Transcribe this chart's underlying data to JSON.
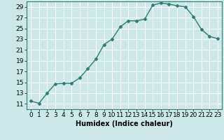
{
  "x": [
    0,
    1,
    2,
    3,
    4,
    5,
    6,
    7,
    8,
    9,
    10,
    11,
    12,
    13,
    14,
    15,
    16,
    17,
    18,
    19,
    20,
    21,
    22,
    23
  ],
  "y": [
    11.5,
    11.1,
    13.0,
    14.7,
    14.8,
    14.8,
    15.8,
    17.5,
    19.3,
    22.0,
    23.0,
    25.3,
    26.4,
    26.4,
    26.7,
    29.3,
    29.7,
    29.5,
    29.2,
    29.0,
    27.2,
    24.8,
    23.5,
    23.1
  ],
  "line_color": "#2e7d6e",
  "marker": "D",
  "marker_size": 2.5,
  "bg_color": "#cce8e8",
  "grid_color": "#ffffff",
  "xlabel": "Humidex (Indice chaleur)",
  "ylabel": "",
  "ylim": [
    10,
    30
  ],
  "xlim": [
    -0.5,
    23.5
  ],
  "yticks": [
    11,
    13,
    15,
    17,
    19,
    21,
    23,
    25,
    27,
    29
  ],
  "xticks": [
    0,
    1,
    2,
    3,
    4,
    5,
    6,
    7,
    8,
    9,
    10,
    11,
    12,
    13,
    14,
    15,
    16,
    17,
    18,
    19,
    20,
    21,
    22,
    23
  ],
  "label_fontsize": 7,
  "tick_fontsize": 6.5
}
